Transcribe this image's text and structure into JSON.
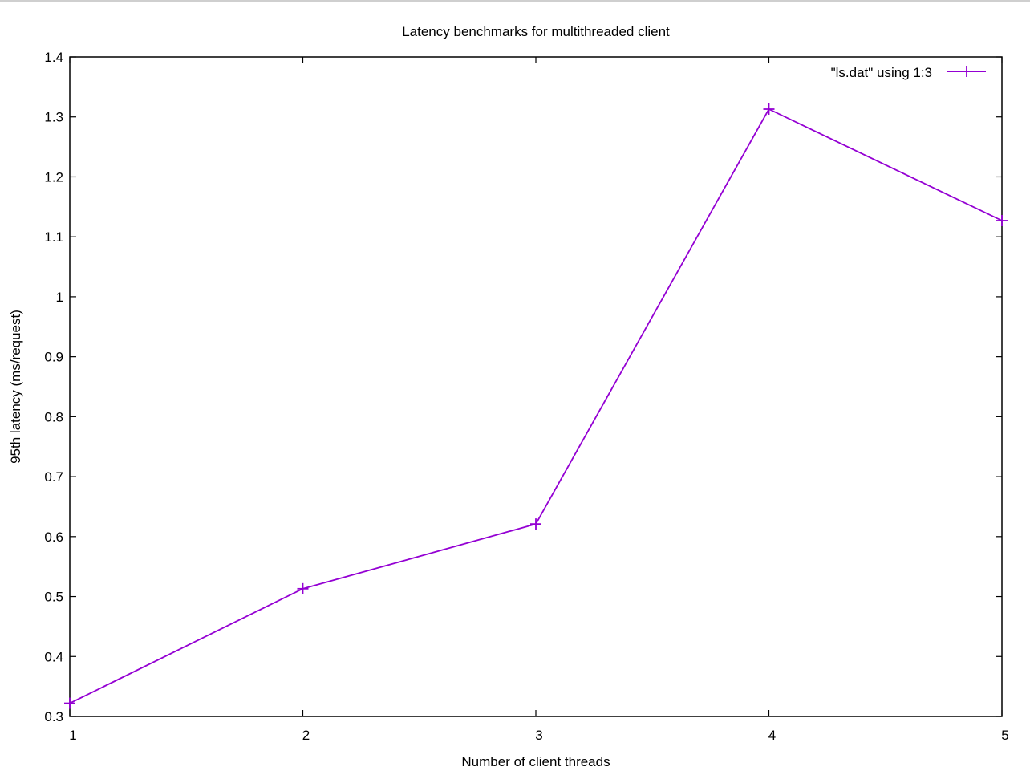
{
  "colors": {
    "series": "#9400d3",
    "axis": "#000000",
    "background": "#ffffff"
  },
  "chart_data": {
    "type": "line",
    "title": "Latency benchmarks for multithreaded client",
    "xlabel": "Number of client threads",
    "ylabel": "95th latency (ms/request)",
    "xlim": [
      1,
      5
    ],
    "ylim": [
      0.3,
      1.4
    ],
    "xticks": [
      "1",
      "2",
      "3",
      "4",
      "5"
    ],
    "yticks": [
      "0.3",
      "0.4",
      "0.5",
      "0.6",
      "0.7",
      "0.8",
      "0.9",
      "1",
      "1.1",
      "1.2",
      "1.3",
      "1.4"
    ],
    "grid": false,
    "legend_position": "top-right",
    "marker": "plus",
    "series": [
      {
        "name": "\"ls.dat\" using 1:3",
        "x": [
          1,
          2,
          3,
          4,
          5
        ],
        "y": [
          0.322,
          0.513,
          0.621,
          1.313,
          1.127
        ]
      }
    ]
  }
}
